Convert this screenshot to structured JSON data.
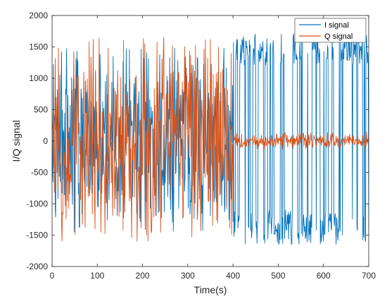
{
  "chart_data": {
    "type": "line",
    "title": "",
    "xlabel": "Time(s)",
    "ylabel": "I/Q signal",
    "xlim": [
      0,
      700
    ],
    "ylim": [
      -2000,
      2000
    ],
    "x_ticks": [
      0,
      100,
      200,
      300,
      400,
      500,
      600,
      700
    ],
    "y_ticks": [
      -2000,
      -1500,
      -1000,
      -500,
      0,
      500,
      1000,
      1500,
      2000
    ],
    "grid": false,
    "legend_position": "top-right",
    "x_step": 1,
    "series": [
      {
        "name": "I signal",
        "color": "#0072BD",
        "segments": [
          {
            "x_start": 0,
            "x_end": 400,
            "pattern": "random",
            "min": -1450,
            "max": 1500
          },
          {
            "x_start": 400,
            "x_end": 700,
            "pattern": "square",
            "high_min": 1200,
            "high_max": 1720,
            "low_min": -1650,
            "low_max": -1100
          }
        ]
      },
      {
        "name": "Q signal",
        "color": "#D95319",
        "segments": [
          {
            "x_start": 0,
            "x_end": 400,
            "pattern": "random",
            "min": -1600,
            "max": 1650
          },
          {
            "x_start": 400,
            "x_end": 700,
            "pattern": "noise",
            "min": -150,
            "max": 150
          }
        ]
      }
    ]
  }
}
